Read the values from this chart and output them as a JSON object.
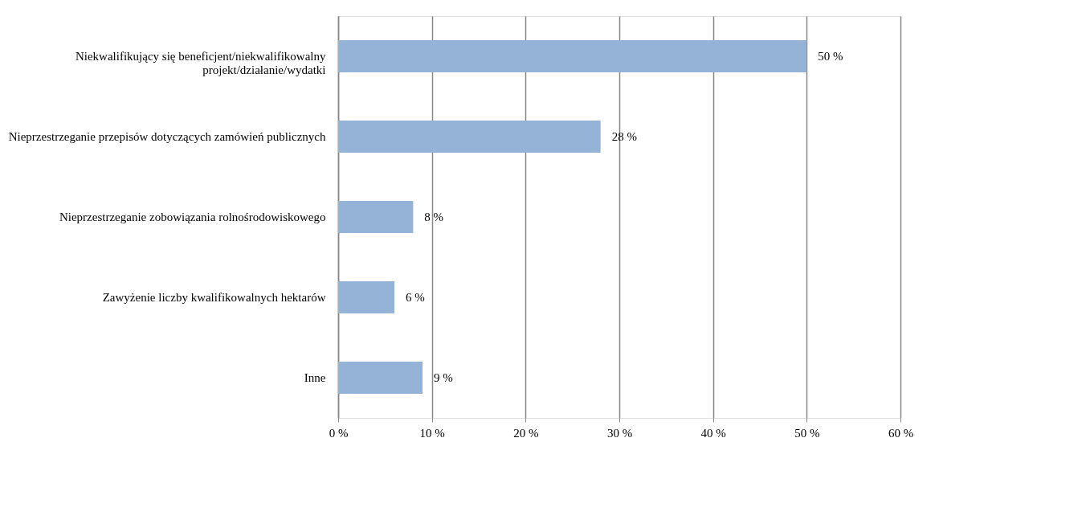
{
  "chart_data": {
    "type": "bar",
    "orientation": "horizontal",
    "categories": [
      "Niekwalifikujący się beneficjent/niekwalifikowalny projekt/działanie/wydatki",
      "Nieprzestrzeganie przepisów dotyczących zamówień publicznych",
      "Nieprzestrzeganie zobowiązania rolnośrodowiskowego",
      "Zawyżenie liczby kwalifikowalnych hektarów",
      "Inne"
    ],
    "values": [
      50,
      28,
      8,
      6,
      9
    ],
    "value_labels": [
      "50 %",
      "28 %",
      "8 %",
      "6 %",
      "9 %"
    ],
    "color": "#95b3d7",
    "xlim": [
      0,
      60
    ],
    "xticks": [
      {
        "value": 0,
        "label": "0 %"
      },
      {
        "value": 10,
        "label": "10 %"
      },
      {
        "value": 20,
        "label": "20 %"
      },
      {
        "value": 30,
        "label": "30 %"
      },
      {
        "value": 40,
        "label": "40 %"
      },
      {
        "value": 50,
        "label": "50 %"
      },
      {
        "value": 60,
        "label": "60 %"
      }
    ],
    "grid": "x"
  }
}
